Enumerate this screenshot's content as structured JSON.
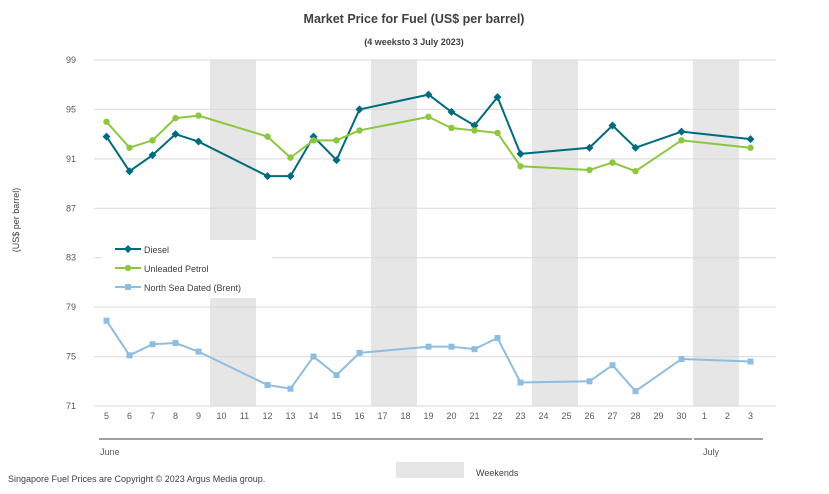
{
  "chart_data": {
    "type": "line",
    "title": "Market Price for Fuel (US$ per barrel)",
    "subtitle": "(4 weeksto 3 July 2023)",
    "ylabel": "(US$ per barrel)",
    "ylim": [
      71,
      99
    ],
    "yticks": [
      71,
      75,
      79,
      83,
      87,
      91,
      95,
      99
    ],
    "categories": [
      "5",
      "6",
      "7",
      "8",
      "9",
      "10",
      "11",
      "12",
      "13",
      "14",
      "15",
      "16",
      "17",
      "18",
      "19",
      "20",
      "21",
      "22",
      "23",
      "24",
      "25",
      "26",
      "27",
      "28",
      "29",
      "30",
      "1",
      "2",
      "3"
    ],
    "month_labels": [
      "June",
      "July"
    ],
    "weekend_bands": [
      [
        "10",
        "11"
      ],
      [
        "17",
        "18"
      ],
      [
        "24",
        "25"
      ],
      [
        "1",
        "2"
      ]
    ],
    "weekend_legend": "Weekends",
    "series": [
      {
        "name": "Diesel",
        "color": "#006b7f",
        "marker": "diamond",
        "points": [
          {
            "x": "5",
            "y": 92.8
          },
          {
            "x": "6",
            "y": 90.0
          },
          {
            "x": "7",
            "y": 91.3
          },
          {
            "x": "8",
            "y": 93.0
          },
          {
            "x": "9",
            "y": 92.4
          },
          {
            "x": "12",
            "y": 89.6
          },
          {
            "x": "13",
            "y": 89.6
          },
          {
            "x": "14",
            "y": 92.8
          },
          {
            "x": "15",
            "y": 90.9
          },
          {
            "x": "16",
            "y": 95.0
          },
          {
            "x": "19",
            "y": 96.2
          },
          {
            "x": "20",
            "y": 94.8
          },
          {
            "x": "21",
            "y": 93.7
          },
          {
            "x": "22",
            "y": 96.0
          },
          {
            "x": "23",
            "y": 91.4
          },
          {
            "x": "26",
            "y": 91.9
          },
          {
            "x": "27",
            "y": 93.7
          },
          {
            "x": "28",
            "y": 91.9
          },
          {
            "x": "30",
            "y": 93.2
          },
          {
            "x": "3",
            "y": 92.6
          }
        ]
      },
      {
        "name": "Unleaded Petrol",
        "color": "#8dc63f",
        "marker": "circle",
        "points": [
          {
            "x": "5",
            "y": 94.0
          },
          {
            "x": "6",
            "y": 91.9
          },
          {
            "x": "7",
            "y": 92.5
          },
          {
            "x": "8",
            "y": 94.3
          },
          {
            "x": "9",
            "y": 94.5
          },
          {
            "x": "12",
            "y": 92.8
          },
          {
            "x": "13",
            "y": 91.1
          },
          {
            "x": "14",
            "y": 92.5
          },
          {
            "x": "15",
            "y": 92.5
          },
          {
            "x": "16",
            "y": 93.3
          },
          {
            "x": "19",
            "y": 94.4
          },
          {
            "x": "20",
            "y": 93.5
          },
          {
            "x": "21",
            "y": 93.3
          },
          {
            "x": "22",
            "y": 93.1
          },
          {
            "x": "23",
            "y": 90.4
          },
          {
            "x": "26",
            "y": 90.1
          },
          {
            "x": "27",
            "y": 90.7
          },
          {
            "x": "28",
            "y": 90.0
          },
          {
            "x": "30",
            "y": 92.5
          },
          {
            "x": "3",
            "y": 91.9
          }
        ]
      },
      {
        "name": "North Sea Dated (Brent)",
        "color": "#8fbde0",
        "marker": "square",
        "points": [
          {
            "x": "5",
            "y": 77.9
          },
          {
            "x": "6",
            "y": 75.1
          },
          {
            "x": "7",
            "y": 76.0
          },
          {
            "x": "8",
            "y": 76.1
          },
          {
            "x": "9",
            "y": 75.4
          },
          {
            "x": "12",
            "y": 72.7
          },
          {
            "x": "13",
            "y": 72.4
          },
          {
            "x": "14",
            "y": 75.0
          },
          {
            "x": "15",
            "y": 73.5
          },
          {
            "x": "16",
            "y": 75.3
          },
          {
            "x": "19",
            "y": 75.8
          },
          {
            "x": "20",
            "y": 75.8
          },
          {
            "x": "21",
            "y": 75.6
          },
          {
            "x": "22",
            "y": 76.5
          },
          {
            "x": "23",
            "y": 72.9
          },
          {
            "x": "26",
            "y": 73.0
          },
          {
            "x": "27",
            "y": 74.3
          },
          {
            "x": "28",
            "y": 72.2
          },
          {
            "x": "30",
            "y": 74.8
          },
          {
            "x": "3",
            "y": 74.6
          }
        ]
      }
    ]
  },
  "footer": {
    "copyright": "Singapore Fuel Prices are Copyright © 2023 Argus Media group."
  }
}
